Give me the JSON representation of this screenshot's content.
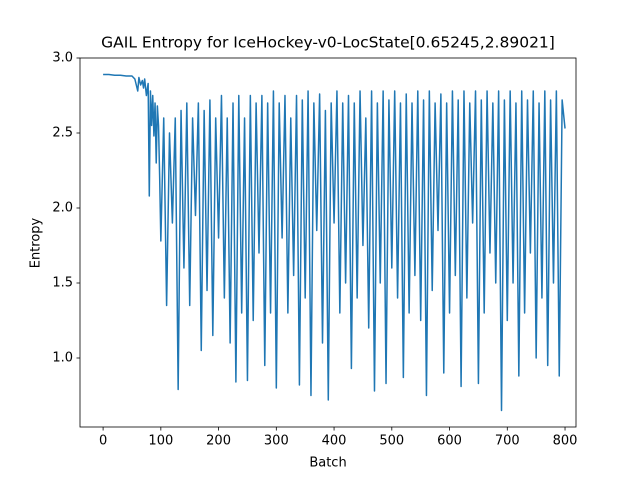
{
  "chart_data": {
    "type": "line",
    "title": "GAIL Entropy for IceHockey-v0-LocState[0.65245,2.89021]",
    "x_label": "Batch",
    "y_label": "Entropy",
    "color": "#1f77b4",
    "grid": false,
    "xlim": [
      -40,
      819
    ],
    "ylim": [
      0.54,
      3.0
    ],
    "xticks": [
      0,
      100,
      200,
      300,
      400,
      500,
      600,
      700,
      800
    ],
    "yticks": [
      {
        "value": 1,
        "label": "1.0"
      },
      {
        "value": 1.5,
        "label": "1.5"
      },
      {
        "value": 2,
        "label": "2.0"
      },
      {
        "value": 2.5,
        "label": "2.5"
      },
      {
        "value": 3,
        "label": "3.0"
      }
    ],
    "x": [
      0,
      10,
      20,
      30,
      40,
      50,
      55,
      60,
      62,
      65,
      68,
      70,
      72,
      75,
      78,
      80,
      82,
      84,
      86,
      88,
      90,
      92,
      94,
      96,
      98,
      100,
      105,
      110,
      115,
      120,
      125,
      130,
      135,
      140,
      145,
      150,
      155,
      160,
      165,
      170,
      175,
      180,
      185,
      190,
      195,
      200,
      205,
      210,
      215,
      220,
      225,
      230,
      235,
      240,
      245,
      250,
      255,
      260,
      265,
      270,
      275,
      280,
      285,
      290,
      295,
      300,
      305,
      310,
      315,
      320,
      325,
      330,
      335,
      340,
      345,
      350,
      355,
      360,
      365,
      370,
      375,
      380,
      385,
      390,
      395,
      400,
      405,
      410,
      415,
      420,
      425,
      430,
      435,
      440,
      445,
      450,
      455,
      460,
      465,
      470,
      475,
      480,
      485,
      490,
      495,
      500,
      505,
      510,
      515,
      520,
      525,
      530,
      535,
      540,
      545,
      550,
      555,
      560,
      565,
      570,
      575,
      580,
      585,
      590,
      595,
      600,
      605,
      610,
      615,
      620,
      625,
      630,
      635,
      640,
      645,
      650,
      655,
      660,
      665,
      670,
      675,
      680,
      685,
      690,
      695,
      700,
      705,
      710,
      715,
      720,
      725,
      730,
      735,
      740,
      745,
      750,
      755,
      760,
      765,
      770,
      775,
      780,
      785,
      790,
      795,
      800
    ],
    "values": [
      2.89,
      2.89,
      2.885,
      2.885,
      2.88,
      2.88,
      2.86,
      2.78,
      2.87,
      2.82,
      2.85,
      2.8,
      2.86,
      2.75,
      2.83,
      2.08,
      2.78,
      2.55,
      2.75,
      2.48,
      2.7,
      2.3,
      2.68,
      2.55,
      2.2,
      1.78,
      2.6,
      1.35,
      2.5,
      1.9,
      2.6,
      0.79,
      2.65,
      1.6,
      2.7,
      1.35,
      2.6,
      1.95,
      2.7,
      1.05,
      2.65,
      1.45,
      2.72,
      1.15,
      2.6,
      1.8,
      2.75,
      1.4,
      2.6,
      1.1,
      2.7,
      0.84,
      2.75,
      1.3,
      2.6,
      0.85,
      2.75,
      1.25,
      2.7,
      1.7,
      2.75,
      0.95,
      2.7,
      1.3,
      2.78,
      0.8,
      2.7,
      1.8,
      2.75,
      1.3,
      2.6,
      1.55,
      2.75,
      0.82,
      2.72,
      1.4,
      2.78,
      0.75,
      2.7,
      1.85,
      2.76,
      1.1,
      2.65,
      0.72,
      2.7,
      1.9,
      2.78,
      1.3,
      2.7,
      1.5,
      2.75,
      0.93,
      2.7,
      1.4,
      2.78,
      1.75,
      2.6,
      1.2,
      2.78,
      0.78,
      2.7,
      1.5,
      2.78,
      0.83,
      2.72,
      1.6,
      2.78,
      1.4,
      2.7,
      0.87,
      2.76,
      1.3,
      2.7,
      1.55,
      2.78,
      1.25,
      2.72,
      0.75,
      2.78,
      1.45,
      2.7,
      1.85,
      2.76,
      0.9,
      2.7,
      1.3,
      2.78,
      1.55,
      2.72,
      0.81,
      2.78,
      1.4,
      2.7,
      1.9,
      2.78,
      0.83,
      2.72,
      1.3,
      2.78,
      1.7,
      2.7,
      1.5,
      2.78,
      0.65,
      2.72,
      1.25,
      2.78,
      1.5,
      2.7,
      0.88,
      2.78,
      1.3,
      2.72,
      1.7,
      2.78,
      1.0,
      2.7,
      1.4,
      2.78,
      0.95,
      2.72,
      1.5,
      2.78,
      0.88,
      2.72,
      2.53
    ]
  }
}
